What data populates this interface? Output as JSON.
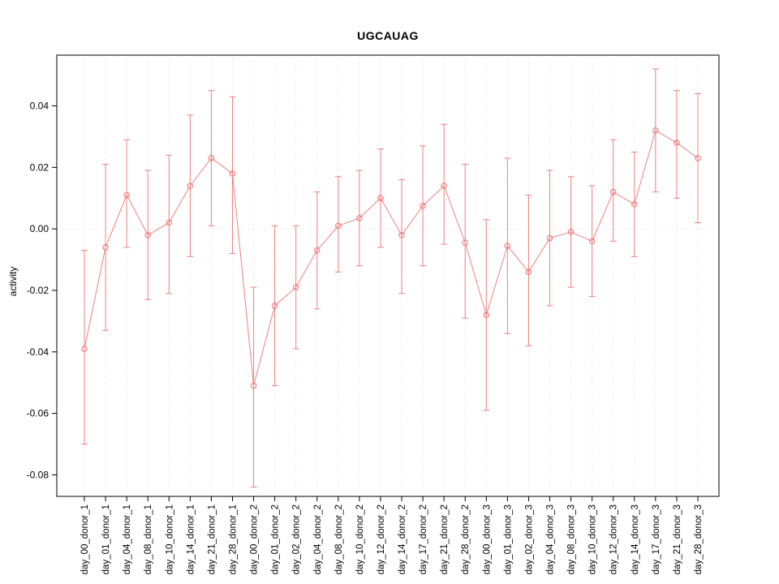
{
  "page": {
    "title": "UGCAUAG"
  },
  "chart_data": {
    "type": "line",
    "title": "UGCAUAG",
    "xlabel": "",
    "ylabel": "activity",
    "legend_position": "none",
    "point_style": "open-circle",
    "error_bars": true,
    "grid": "dotted vertical gridline at each category; dotted horizontal line at y=0",
    "color": "#f08080",
    "grid_color": "#d9d9d9",
    "axis_color": "#000000",
    "ylim": [
      -0.087,
      0.0565
    ],
    "yticks": [
      -0.08,
      -0.06,
      -0.04,
      -0.02,
      0.0,
      0.02,
      0.04
    ],
    "categories": [
      "day_00_donor_1",
      "day_01_donor_1",
      "day_04_donor_1",
      "day_08_donor_1",
      "day_10_donor_1",
      "day_14_donor_1",
      "day_21_donor_1",
      "day_28_donor_1",
      "day_00_donor_2",
      "day_01_donor_2",
      "day_02_donor_2",
      "day_04_donor_2",
      "day_08_donor_2",
      "day_10_donor_2",
      "day_12_donor_2",
      "day_14_donor_2",
      "day_17_donor_2",
      "day_21_donor_2",
      "day_28_donor_2",
      "day_00_donor_3",
      "day_01_donor_3",
      "day_02_donor_3",
      "day_04_donor_3",
      "day_08_donor_3",
      "day_10_donor_3",
      "day_12_donor_3",
      "day_14_donor_3",
      "day_17_donor_3",
      "day_21_donor_3",
      "day_28_donor_3"
    ],
    "series": [
      {
        "name": "activity",
        "values": [
          -0.039,
          -0.006,
          0.011,
          -0.002,
          0.002,
          0.014,
          0.023,
          0.018,
          -0.051,
          -0.025,
          -0.019,
          -0.007,
          0.001,
          0.0035,
          0.01,
          -0.002,
          0.0075,
          0.014,
          -0.0045,
          -0.028,
          -0.0055,
          -0.014,
          -0.003,
          -0.001,
          -0.004,
          0.012,
          0.008,
          0.032,
          0.028,
          0.023
        ],
        "lower": [
          -0.07,
          -0.033,
          -0.006,
          -0.023,
          -0.021,
          -0.009,
          0.001,
          -0.008,
          -0.084,
          -0.051,
          -0.039,
          -0.026,
          -0.014,
          -0.012,
          -0.006,
          -0.021,
          -0.012,
          -0.005,
          -0.029,
          -0.059,
          -0.034,
          -0.038,
          -0.025,
          -0.019,
          -0.022,
          -0.004,
          -0.009,
          0.012,
          0.01,
          0.002
        ],
        "upper": [
          -0.007,
          0.021,
          0.029,
          0.019,
          0.024,
          0.037,
          0.045,
          0.043,
          -0.019,
          0.001,
          0.001,
          0.012,
          0.017,
          0.019,
          0.026,
          0.016,
          0.027,
          0.034,
          0.021,
          0.003,
          0.023,
          0.011,
          0.019,
          0.017,
          0.014,
          0.029,
          0.025,
          0.052,
          0.045,
          0.044
        ]
      }
    ]
  }
}
